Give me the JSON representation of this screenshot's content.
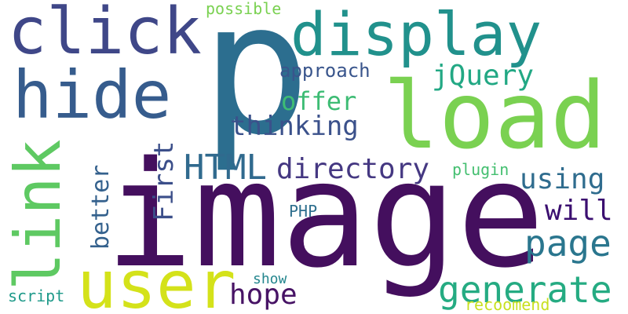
{
  "words": [
    {
      "text": "image",
      "color": "#440f5e"
    },
    {
      "text": "p",
      "color": "#2c6e8f"
    },
    {
      "text": "load",
      "color": "#7ad151"
    },
    {
      "text": "user",
      "color": "#d4e21a"
    },
    {
      "text": "display",
      "color": "#21918c"
    },
    {
      "text": "click",
      "color": "#3f4788"
    },
    {
      "text": "hide",
      "color": "#365c8d"
    },
    {
      "text": "link",
      "color": "#5ec962"
    },
    {
      "text": "generate",
      "color": "#25ab82"
    },
    {
      "text": "page",
      "color": "#2a768e"
    },
    {
      "text": "directory",
      "color": "#453882"
    },
    {
      "text": "HTML",
      "color": "#306a8e"
    },
    {
      "text": "thinking",
      "color": "#3b518b"
    },
    {
      "text": "using",
      "color": "#2f6c8e"
    },
    {
      "text": "will",
      "color": "#3b0f70"
    },
    {
      "text": "hope",
      "color": "#471365"
    },
    {
      "text": "First",
      "color": "#3c4f8a"
    },
    {
      "text": "offer",
      "color": "#3dbc74"
    },
    {
      "text": "jQuery",
      "color": "#22a884"
    },
    {
      "text": "better",
      "color": "#34618d"
    },
    {
      "text": "approach",
      "color": "#39558c"
    },
    {
      "text": "possible",
      "color": "#7ad151"
    },
    {
      "text": "plugin",
      "color": "#44bf70"
    },
    {
      "text": "PHP",
      "color": "#2e6f8e"
    },
    {
      "text": "show",
      "color": "#24868e"
    },
    {
      "text": "script",
      "color": "#1f9a8a"
    },
    {
      "text": "recoomend",
      "color": "#c8e020"
    }
  ]
}
